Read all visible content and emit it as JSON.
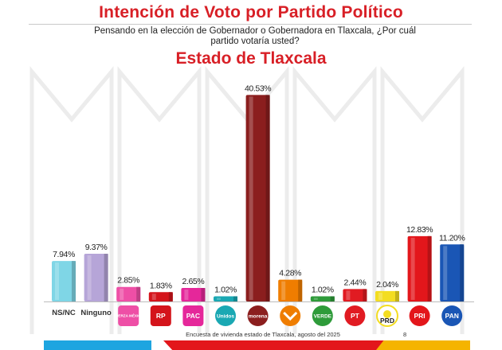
{
  "title": "Intención de Voto por Partido Político",
  "question": "Pensando en la elección de Gobernador o Gobernadora en Tlaxcala, ¿Por cuál partido votaría usted?",
  "subtitle": "Estado de Tlaxcala",
  "footer": {
    "source": "Encuesta de vivienda estado de Tlaxcala, agosto del 2025",
    "page": "8"
  },
  "colors": {
    "accent_red": "#d81f26",
    "footer_cyan": "#1ea5e0",
    "footer_red": "#e3161b",
    "footer_yellow": "#f5b400"
  },
  "chart_data": {
    "type": "bar",
    "title": "",
    "xlabel": "",
    "ylabel": "",
    "ylim": [
      0,
      42
    ],
    "grid": false,
    "categories": [
      "NS/NC",
      "Ninguno",
      "Fuerza por México",
      "RP",
      "PAC",
      "Unidos",
      "Morena",
      "MC",
      "Verde",
      "PT",
      "PRD",
      "PRI",
      "PAN"
    ],
    "values": [
      7.94,
      9.37,
      2.85,
      1.83,
      2.65,
      1.02,
      40.53,
      4.28,
      1.02,
      2.44,
      2.04,
      12.83,
      11.2
    ],
    "value_labels": [
      "7.94%",
      "9.37%",
      "2.85%",
      "1.83%",
      "2.65%",
      "1.02%",
      "40.53%",
      "4.28%",
      "1.02%",
      "2.44%",
      "2.04%",
      "12.83%",
      "11.20%"
    ],
    "text_labels": [
      "NS/NC",
      "Ninguno",
      "",
      "",
      "",
      "",
      "",
      "",
      "",
      "",
      "",
      "",
      ""
    ],
    "bar_colors": [
      "#7fd6e6",
      "#b6a5d8",
      "#ee4fa6",
      "#d4141b",
      "#e5279a",
      "#1aa8b3",
      "#8b1e1e",
      "#ef7d00",
      "#2e9b3a",
      "#e11b22",
      "#f3dd21",
      "#e3161b",
      "#1a56b5"
    ],
    "logos": [
      {
        "icon": "none",
        "text": "",
        "color": ""
      },
      {
        "icon": "none",
        "text": "",
        "color": ""
      },
      {
        "icon": "fuerza-mexico-logo",
        "text": "FUERZA MÉXICO",
        "color": "#ee4fa6"
      },
      {
        "icon": "rp-logo",
        "text": "RP",
        "color": "#d4141b"
      },
      {
        "icon": "pac-logo",
        "text": "PAC",
        "color": "#e5279a"
      },
      {
        "icon": "unidos-logo",
        "text": "Unidos",
        "color": "#1aa8b3"
      },
      {
        "icon": "morena-logo",
        "text": "morena",
        "color": "#8b1e1e"
      },
      {
        "icon": "mc-logo",
        "text": "",
        "color": "#ef7d00"
      },
      {
        "icon": "verde-logo",
        "text": "VERDE",
        "color": "#2e9b3a"
      },
      {
        "icon": "pt-logo",
        "text": "PT",
        "color": "#e11b22"
      },
      {
        "icon": "prd-logo",
        "text": "PRD",
        "color": "#f3dd21"
      },
      {
        "icon": "pri-logo",
        "text": "PRI",
        "color": "#e3161b"
      },
      {
        "icon": "pan-logo",
        "text": "PAN",
        "color": "#1a56b5"
      }
    ]
  }
}
